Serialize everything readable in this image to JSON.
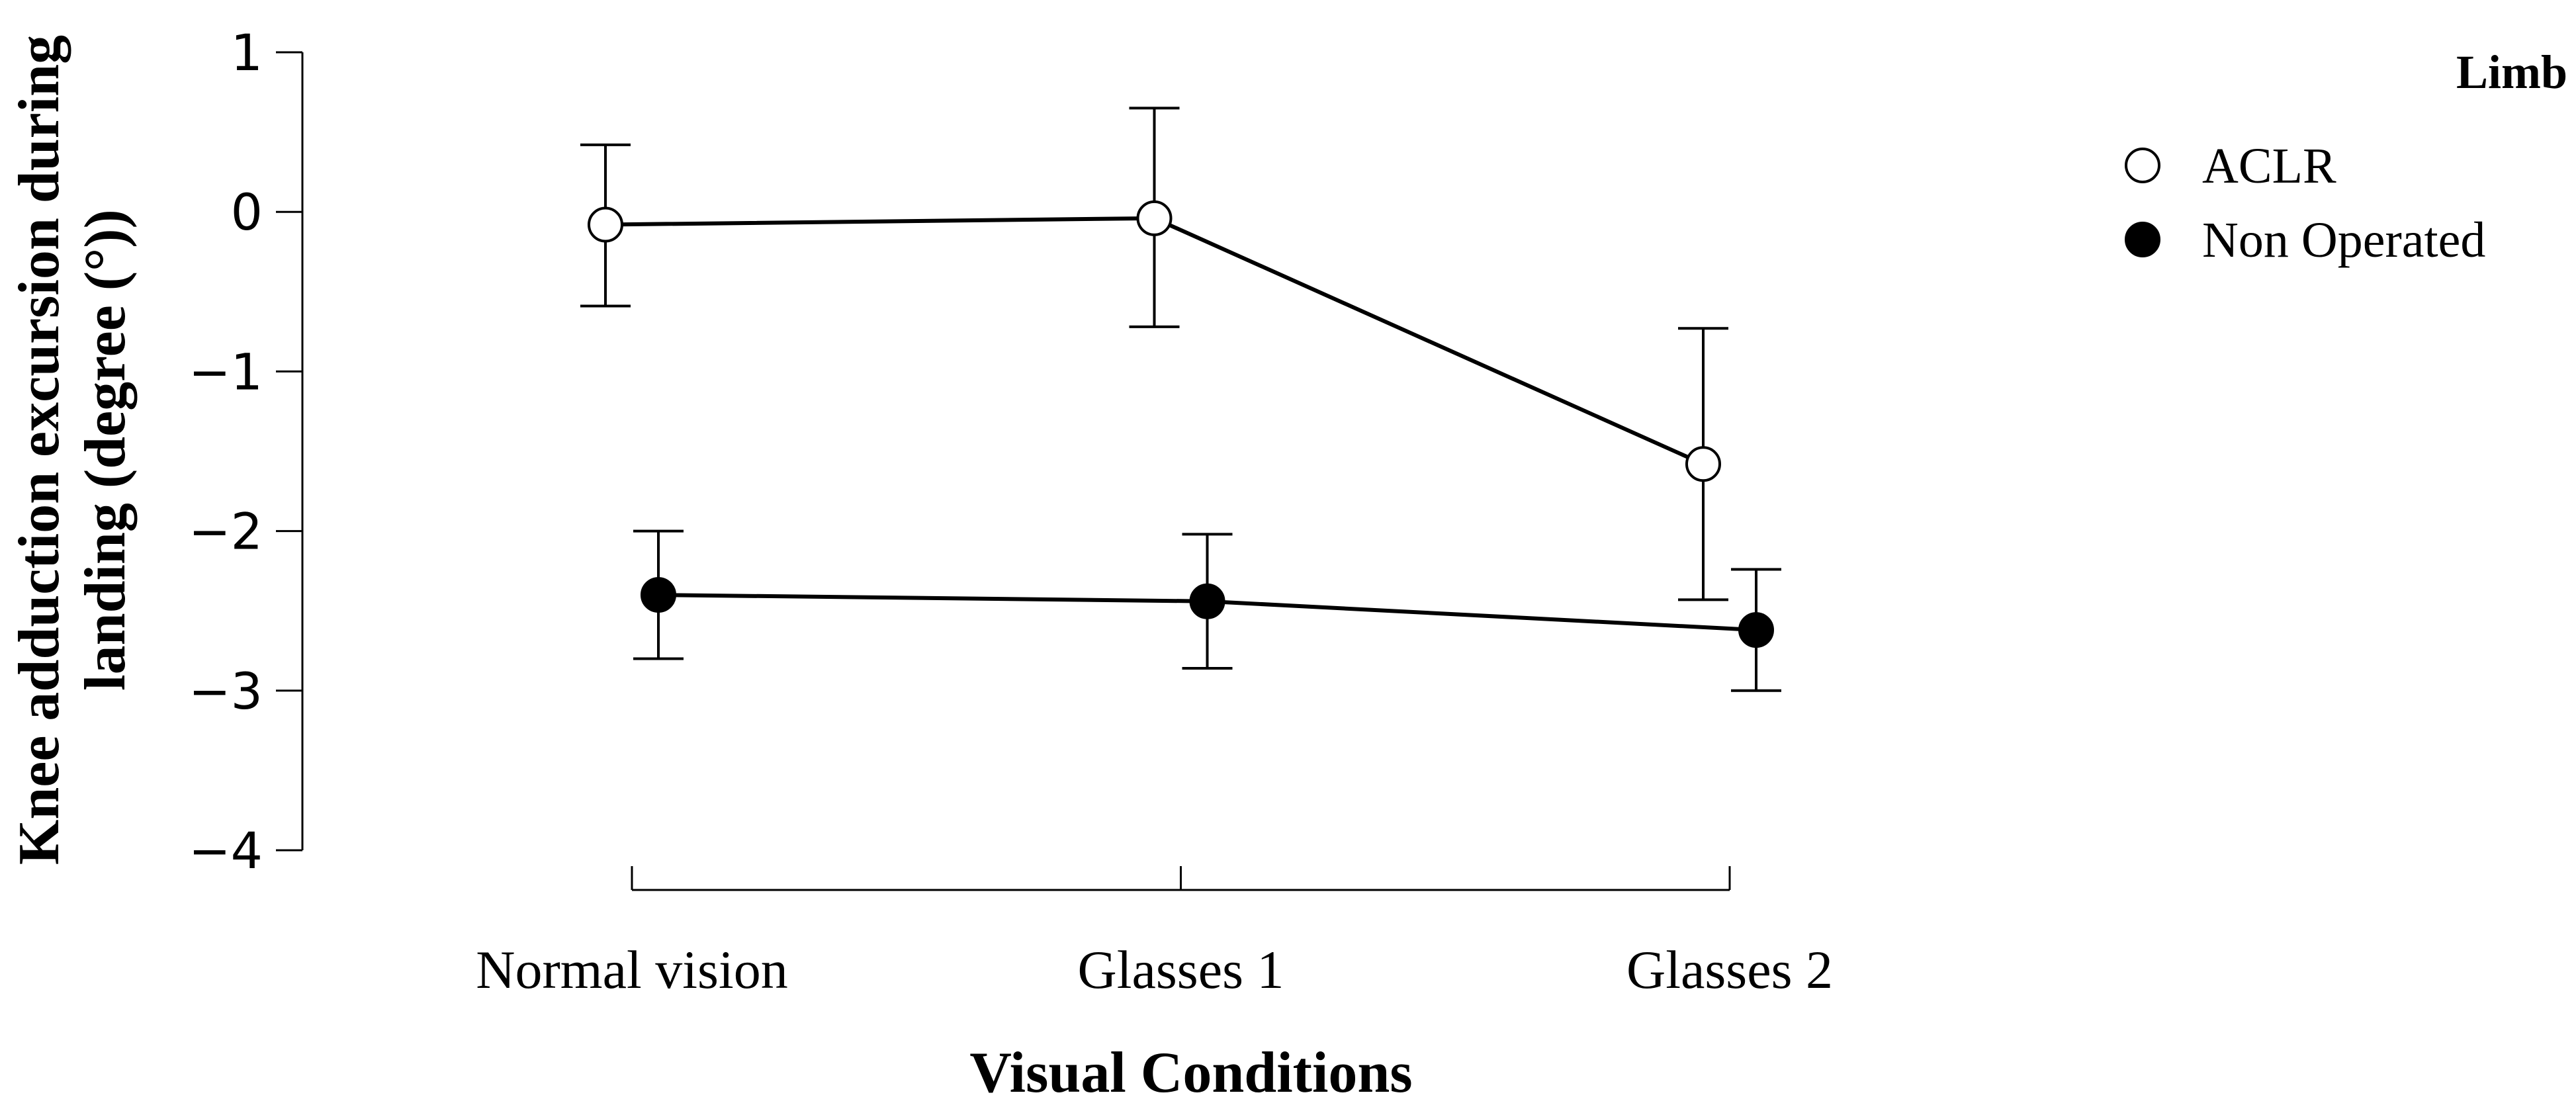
{
  "chart_data": {
    "type": "line",
    "categories": [
      "Normal vision",
      "Glasses 1",
      "Glasses 2"
    ],
    "xlabel": "Visual Conditions",
    "ylabel_lines": [
      "Knee adduction excursion during",
      "landing (degree (°))"
    ],
    "ylim": [
      -4,
      1
    ],
    "yticks": [
      1,
      0,
      -1,
      -2,
      -3,
      -4
    ],
    "ytick_labels": [
      "1",
      "0",
      "−1",
      "−2",
      "−3",
      "−4"
    ],
    "legend_title": "Limb",
    "legend_position": "top-right",
    "grid": false,
    "series": [
      {
        "name": "ACLR",
        "marker": "open-circle",
        "values": [
          -0.08,
          -0.04,
          -1.58
        ],
        "err_low": [
          -0.59,
          -0.72,
          -2.43
        ],
        "err_high": [
          0.42,
          0.65,
          -0.73
        ]
      },
      {
        "name": "Non Operated",
        "marker": "filled-circle",
        "values": [
          -2.4,
          -2.44,
          -2.62
        ],
        "err_low": [
          -2.8,
          -2.86,
          -3.0
        ],
        "err_high": [
          -2.0,
          -2.02,
          -2.24
        ]
      }
    ],
    "colors": {
      "line": "#000000",
      "open_fill": "#ffffff",
      "filled_fill": "#000000"
    }
  }
}
